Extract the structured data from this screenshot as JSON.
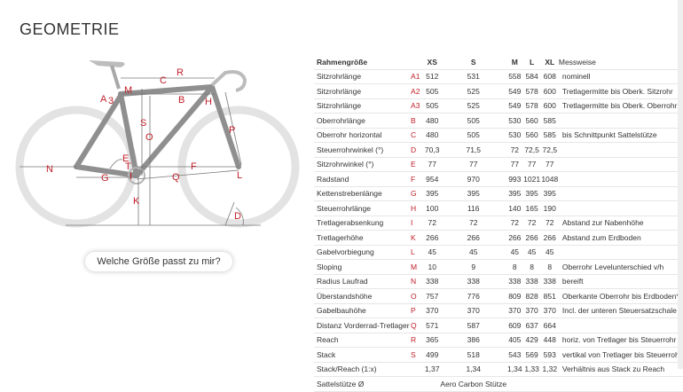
{
  "page_title": "GEOMETRIE",
  "size_button_label": "Welche Größe passt zu mir?",
  "diagram_labels": [
    "R",
    "M",
    "A",
    "A",
    "C",
    "B",
    "H",
    "S",
    "O",
    "P",
    "E",
    "T",
    "N",
    "G",
    "I",
    "F",
    "Q",
    "L",
    "K",
    "D"
  ],
  "table": {
    "header": {
      "name": "Rahmengröße",
      "sizes": [
        "XS",
        "S",
        "M",
        "L",
        "XL"
      ],
      "note": "Messweise"
    },
    "rows": [
      {
        "name": "Sitzrohrlänge",
        "code": "A1",
        "values": [
          "512",
          "531",
          "558",
          "584",
          "608"
        ],
        "note": "nominell"
      },
      {
        "name": "Sitzrohrlänge",
        "code": "A2",
        "values": [
          "505",
          "525",
          "549",
          "578",
          "600"
        ],
        "note": "Tretlagermitte bis Oberk. Sitzrohr"
      },
      {
        "name": "Sitzrohrlänge",
        "code": "A3",
        "values": [
          "505",
          "525",
          "549",
          "578",
          "600"
        ],
        "note": "Tretlagermitte bis Oberk. Oberrohr"
      },
      {
        "name": "Oberrohrlänge",
        "code": "B",
        "values": [
          "480",
          "505",
          "530",
          "560",
          "585"
        ],
        "note": ""
      },
      {
        "name": "Oberrohr horizontal",
        "code": "C",
        "values": [
          "480",
          "505",
          "530",
          "560",
          "585"
        ],
        "note": "bis Schnittpunkt Sattelstütze"
      },
      {
        "name": "Steuerrohrwinkel (°)",
        "code": "D",
        "values": [
          "70,3",
          "71,5",
          "72",
          "72,5",
          "72,5"
        ],
        "note": ""
      },
      {
        "name": "Sitzrohrwinkel (°)",
        "code": "E",
        "values": [
          "77",
          "77",
          "77",
          "77",
          "77"
        ],
        "note": ""
      },
      {
        "name": "Radstand",
        "code": "F",
        "values": [
          "954",
          "970",
          "993",
          "1021",
          "1048"
        ],
        "note": ""
      },
      {
        "name": "Kettenstrebenlänge",
        "code": "G",
        "values": [
          "395",
          "395",
          "395",
          "395",
          "395"
        ],
        "note": ""
      },
      {
        "name": "Steuerrohrlänge",
        "code": "H",
        "values": [
          "100",
          "116",
          "140",
          "165",
          "190"
        ],
        "note": ""
      },
      {
        "name": "Tretlagerabsenkung",
        "code": "I",
        "values": [
          "72",
          "72",
          "72",
          "72",
          "72"
        ],
        "note": "Abstand zur Nabenhöhe"
      },
      {
        "name": "Tretlagerhöhe",
        "code": "K",
        "values": [
          "266",
          "266",
          "266",
          "266",
          "266"
        ],
        "note": "Abstand zum Erdboden"
      },
      {
        "name": "Gabelvorbiegung",
        "code": "L",
        "values": [
          "45",
          "45",
          "45",
          "45",
          "45"
        ],
        "note": ""
      },
      {
        "name": "Sloping",
        "code": "M",
        "values": [
          "10",
          "9",
          "8",
          "8",
          "8"
        ],
        "note": "Oberrohr Levelunterschied v/h"
      },
      {
        "name": "Radius Laufrad",
        "code": "N",
        "values": [
          "338",
          "338",
          "338",
          "338",
          "338"
        ],
        "note": "bereift"
      },
      {
        "name": "Überstandshöhe",
        "code": "O",
        "values": [
          "757",
          "776",
          "809",
          "828",
          "851"
        ],
        "note": "Oberkante Oberrohr bis Erdboden*"
      },
      {
        "name": "Gabelbauhöhe",
        "code": "P",
        "values": [
          "370",
          "370",
          "370",
          "370",
          "370"
        ],
        "note": "Incl. der unteren Steuersatzschale"
      },
      {
        "name": "Distanz Vorderrad-Tretlager",
        "code": "Q",
        "values": [
          "571",
          "587",
          "609",
          "637",
          "664"
        ],
        "note": ""
      },
      {
        "name": "Reach",
        "code": "R",
        "values": [
          "365",
          "386",
          "405",
          "429",
          "448"
        ],
        "note": "horiz. von Tretlager bis Steuerrohr"
      },
      {
        "name": "Stack",
        "code": "S",
        "values": [
          "499",
          "518",
          "543",
          "569",
          "593"
        ],
        "note": "vertikal von Tretlager bis Steuerrohr"
      },
      {
        "name": "Stack/Reach (1:x)",
        "code": "",
        "values": [
          "1,37",
          "1,34",
          "1,34",
          "1,33",
          "1,32"
        ],
        "note": "Verhältnis aus Stack zu Reach"
      },
      {
        "name": "Sattelstütze Ø",
        "code": "",
        "values": [
          "",
          "Aero Carbon Stütze",
          "",
          "",
          ""
        ],
        "note": ""
      }
    ]
  }
}
